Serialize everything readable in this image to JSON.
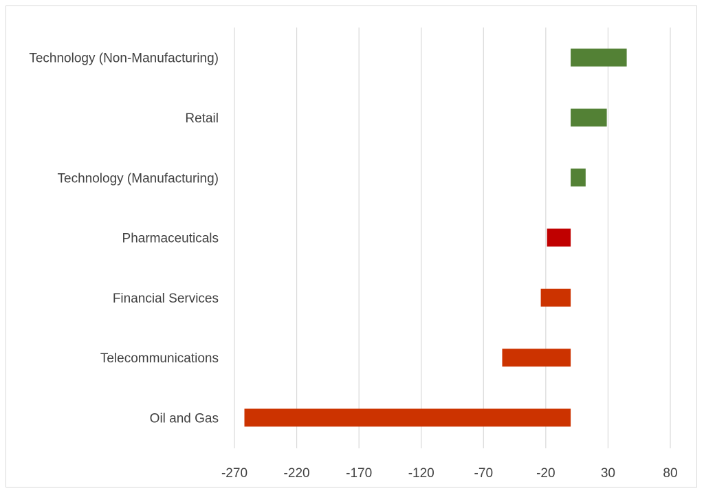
{
  "chart_data": {
    "type": "bar",
    "orientation": "horizontal",
    "title": "",
    "xlabel": "",
    "ylabel": "",
    "categories": [
      "Technology (Non-Manufacturing)",
      "Retail",
      "Technology (Manufacturing)",
      "Pharmaceuticals",
      "Financial Services",
      "Telecommunications",
      "Oil and Gas"
    ],
    "values": [
      45,
      29,
      12,
      -19,
      -24,
      -55,
      -262
    ],
    "bar_colors": [
      "#538135",
      "#538135",
      "#538135",
      "#c00000",
      "#cc3300",
      "#cc3300",
      "#cc3300"
    ],
    "xlim": [
      -270,
      80
    ],
    "xticks": [
      -270,
      -220,
      -170,
      -120,
      -70,
      -20,
      30,
      80
    ],
    "xtick_labels": [
      "-270",
      "-220",
      "-170",
      "-120",
      "-70",
      "-20",
      "30",
      "80"
    ],
    "grid": true,
    "legend": "none"
  },
  "colors": {
    "positive": "#538135",
    "highlight_negative": "#c00000",
    "negative": "#cc3300",
    "gridline": "#d9d9d9",
    "text": "#404040"
  }
}
